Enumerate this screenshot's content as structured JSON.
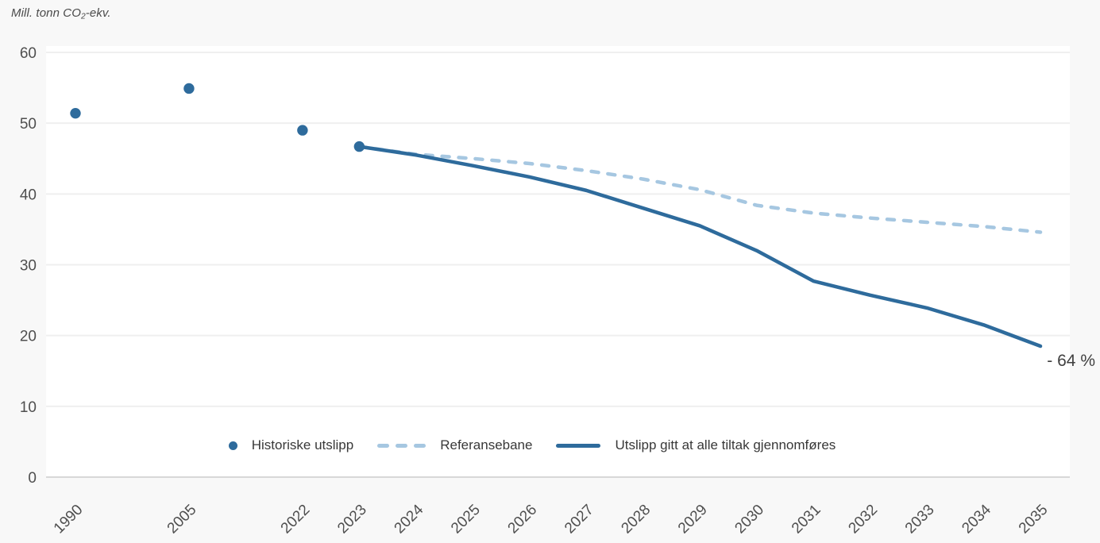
{
  "title": {
    "prefix": "Mill. tonn CO",
    "sub": "2",
    "suffix": "-ekv."
  },
  "annotation": {
    "text": "- 64 %"
  },
  "colors": {
    "primary_blue": "#2e6b9c",
    "light_blue": "#a6c7e1",
    "grid": "#efefef",
    "axis_line": "#d8d8d8",
    "tick_text": "#4f4f4f",
    "legend_text": "#383838",
    "page_background": "#f8f8f8",
    "plot_background": "#ffffff"
  },
  "chart_data": {
    "type": "line",
    "title": "Mill. tonn CO2-ekv.",
    "ylabel": "Mill. tonn CO2-ekv.",
    "xlabel": "",
    "ylim": [
      0,
      60
    ],
    "yticks": [
      0,
      10,
      20,
      30,
      40,
      50,
      60
    ],
    "grid": "horizontal",
    "legend_position": "bottom",
    "categories": [
      "1990",
      "2005",
      "2022",
      "2023",
      "2024",
      "2025",
      "2026",
      "2027",
      "2028",
      "2029",
      "2030",
      "2031",
      "2032",
      "2033",
      "2034",
      "2035"
    ],
    "category_slots": [
      0,
      2,
      4,
      5,
      6,
      7,
      8,
      9,
      10,
      11,
      12,
      13,
      14,
      15,
      16,
      17
    ],
    "series": [
      {
        "name": "Historiske utslipp",
        "type": "scatter",
        "color": "#2e6b9c",
        "x": [
          "1990",
          "2005",
          "2022",
          "2023"
        ],
        "values": [
          51.4,
          54.9,
          49.0,
          46.7
        ]
      },
      {
        "name": "Referansebane",
        "type": "line",
        "style": "dashed",
        "color": "#a6c7e1",
        "x": [
          "2023",
          "2024",
          "2025",
          "2026",
          "2027",
          "2028",
          "2029",
          "2030",
          "2031",
          "2032",
          "2033",
          "2034",
          "2035"
        ],
        "values": [
          46.7,
          45.6,
          45.0,
          44.3,
          43.3,
          42.1,
          40.6,
          38.4,
          37.3,
          36.6,
          36.0,
          35.4,
          34.6
        ]
      },
      {
        "name": "Utslipp gitt at alle tiltak gjennomføres",
        "type": "line",
        "style": "solid",
        "color": "#2e6b9c",
        "x": [
          "2023",
          "2024",
          "2025",
          "2026",
          "2027",
          "2028",
          "2029",
          "2030",
          "2031",
          "2032",
          "2033",
          "2034",
          "2035"
        ],
        "values": [
          46.7,
          45.5,
          44.0,
          42.4,
          40.5,
          38.0,
          35.5,
          32.0,
          27.7,
          25.7,
          23.9,
          21.5,
          18.5
        ]
      }
    ],
    "annotations": [
      {
        "text": "- 64 %",
        "near": "2035",
        "value": 18.5,
        "meaning": "reduction vs 1990"
      }
    ]
  }
}
